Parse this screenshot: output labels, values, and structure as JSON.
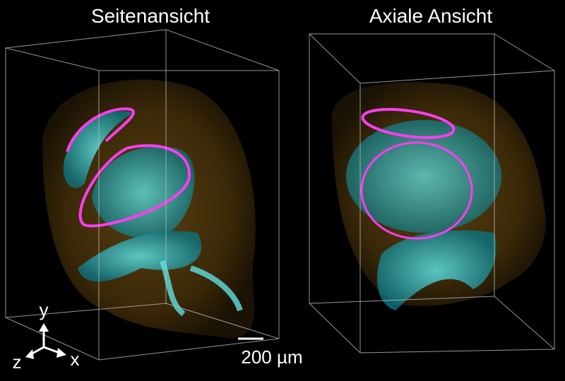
{
  "titles": {
    "left": "Seitenansicht",
    "right": "Axiale Ansicht"
  },
  "scale_bar": {
    "label": "200 µm"
  },
  "axes": {
    "y": "y",
    "z": "z",
    "x": "x"
  }
}
